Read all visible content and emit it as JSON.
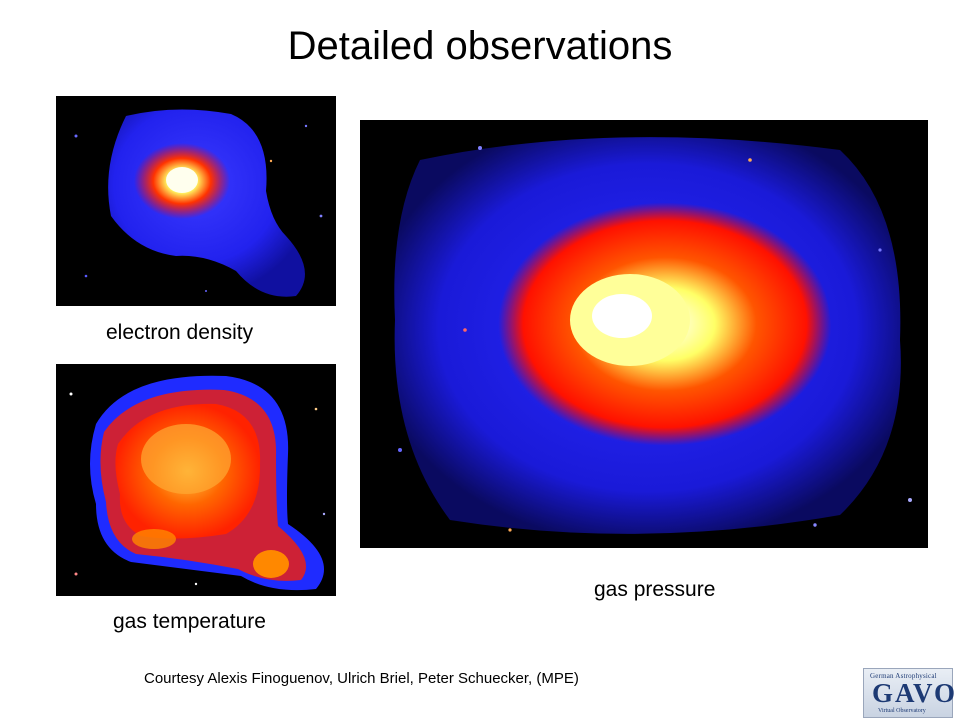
{
  "slide": {
    "title": "Detailed observations",
    "panels": [
      {
        "caption": "electron density"
      },
      {
        "caption": "gas temperature"
      },
      {
        "caption": "gas pressure"
      }
    ],
    "credit": "Courtesy Alexis Finoguenov, Ulrich Briel, Peter Schuecker, (MPE)"
  },
  "logo": {
    "top_text": "German Astrophysical",
    "main_text": "GAVO",
    "bottom_text": "Virtual Observatory"
  },
  "colors": {
    "background": "#ffffff",
    "image_background": "#000000",
    "colormap": [
      "#000000",
      "#1020ff",
      "#ff1a00",
      "#ffff66",
      "#ffffff"
    ]
  }
}
